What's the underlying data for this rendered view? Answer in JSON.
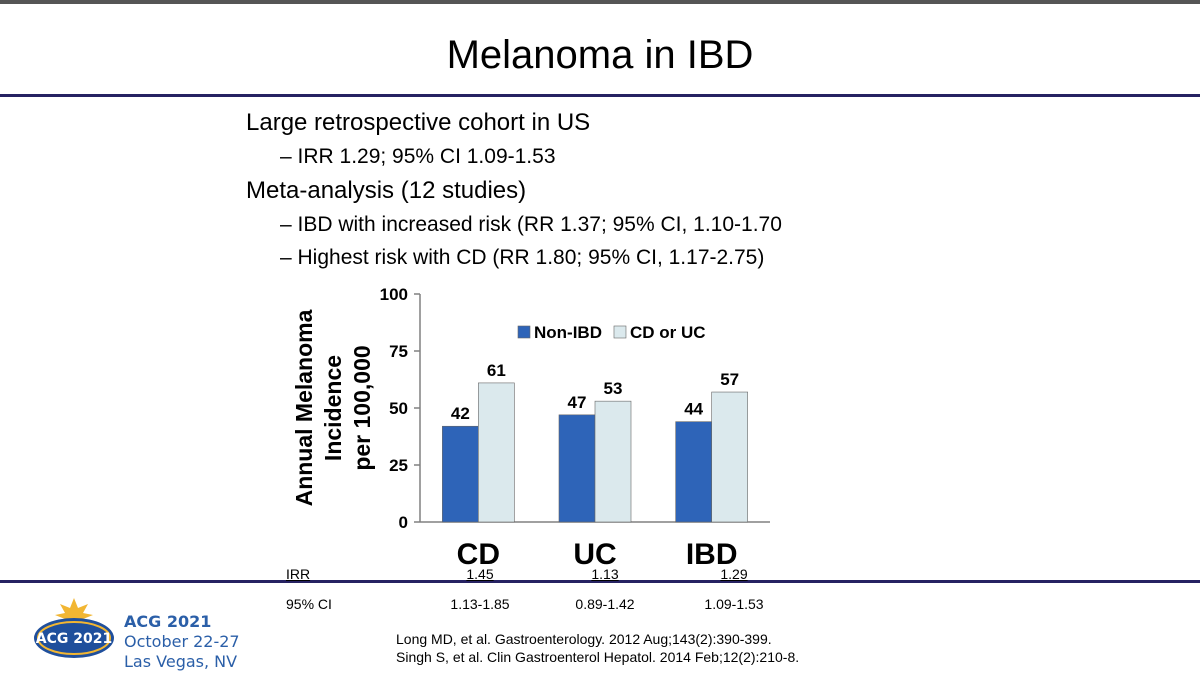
{
  "slide": {
    "title": "Melanoma in IBD",
    "bullets": [
      {
        "level": 1,
        "text": "Large retrospective cohort in US"
      },
      {
        "level": 2,
        "text": "– IRR 1.29; 95% CI 1.09-1.53"
      },
      {
        "level": 1,
        "text": "Meta-analysis (12 studies)"
      },
      {
        "level": 2,
        "text": "– IBD with increased risk (RR 1.37; 95% CI, 1.10-1.70"
      },
      {
        "level": 2,
        "text": "– Highest risk with CD (RR 1.80; 95% CI, 1.17-2.75)"
      }
    ],
    "irr_label": "IRR",
    "irr_values": [
      "1.45",
      "1.13",
      "1.29"
    ],
    "ci_label": "95% CI",
    "ci_values": [
      "1.13-1.85",
      "0.89-1.42",
      "1.09-1.53"
    ],
    "references": [
      "Long MD, et al. Gastroenterology. 2012 Aug;143(2):390-399.",
      "Singh S, et al. Clin Gastroenterol Hepatol. 2014 Feb;12(2):210-8."
    ],
    "conference": {
      "name": "ACG 2021",
      "dates": "October 22-27",
      "location": "Las Vegas, NV",
      "logo_text": "ACG 2021"
    },
    "colors": {
      "rule": "#262262",
      "topbar": "#555555",
      "conference_text": "#2b5fa8"
    }
  },
  "chart_data": {
    "type": "bar",
    "categories": [
      "CD",
      "UC",
      "IBD"
    ],
    "series": [
      {
        "name": "Non-IBD",
        "values": [
          42,
          47,
          44
        ],
        "color": "#2e64b8"
      },
      {
        "name": "CD or UC",
        "values": [
          61,
          53,
          57
        ],
        "color": "#dbe9ed"
      }
    ],
    "ylabel_lines": [
      "Annual Melanoma",
      "Incidence",
      "per 100,000"
    ],
    "ylim": [
      0,
      100
    ],
    "yticks": [
      0,
      25,
      50,
      75,
      100
    ],
    "legend_position": "top-right",
    "grid": false,
    "data_labels": true
  }
}
